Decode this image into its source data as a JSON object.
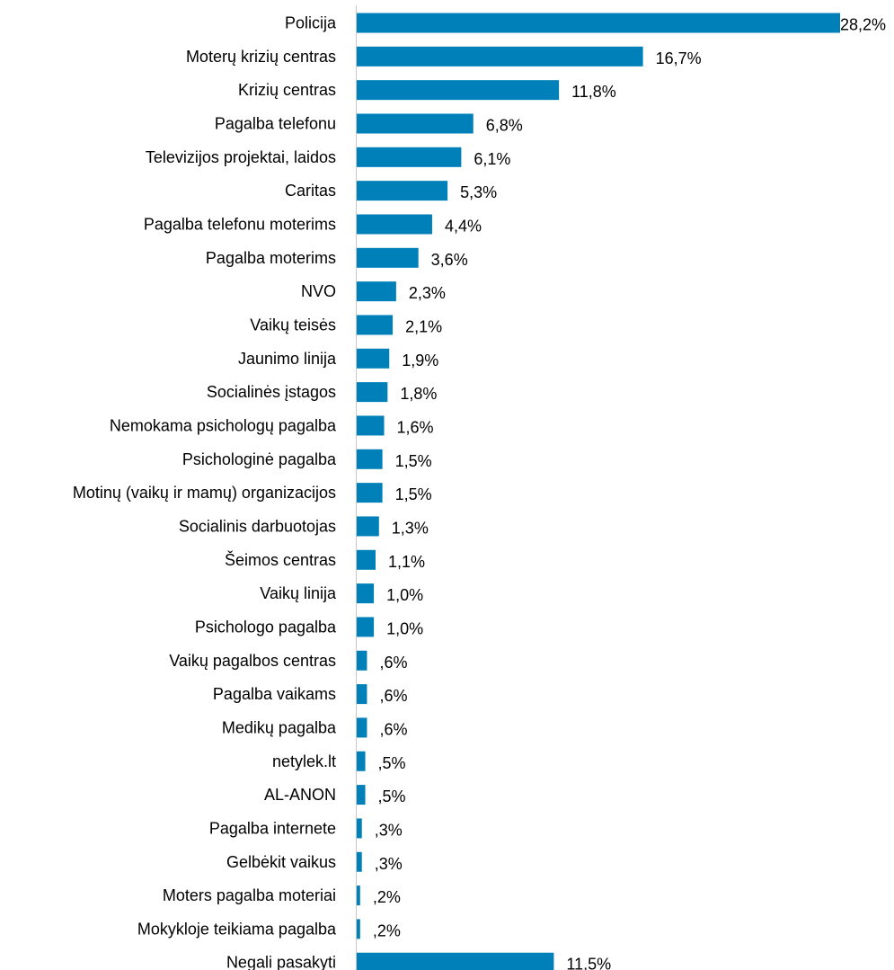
{
  "chart_data": {
    "type": "bar",
    "orientation": "horizontal",
    "bar_color": "#0080B9",
    "grid": false,
    "legend": "none",
    "xlim": [
      0,
      28.2
    ],
    "categories": [
      "Policija",
      "Moterų krizių centras",
      "Krizių centras",
      "Pagalba telefonu",
      "Televizijos projektai, laidos",
      "Caritas",
      "Pagalba telefonu moterims",
      "Pagalba moterims",
      "NVO",
      "Vaikų teisės",
      "Jaunimo linija",
      "Socialinės įstagos",
      "Nemokama psichologų pagalba",
      "Psichologinė pagalba",
      "Motinų (vaikų ir mamų) organizacijos",
      "Socialinis darbuotojas",
      "Šeimos centras",
      "Vaikų linija",
      "Psichologo pagalba",
      "Vaikų pagalbos centras",
      "Pagalba vaikams",
      "Medikų pagalba",
      "netylek.lt",
      "AL-ANON",
      "Pagalba internete",
      "Gelbėkit vaikus",
      "Moters pagalba moteriai",
      "Mokykloje teikiama pagalba",
      "Negali pasakyti"
    ],
    "values": [
      28.2,
      16.7,
      11.8,
      6.8,
      6.1,
      5.3,
      4.4,
      3.6,
      2.3,
      2.1,
      1.9,
      1.8,
      1.6,
      1.5,
      1.5,
      1.3,
      1.1,
      1.0,
      1.0,
      0.6,
      0.6,
      0.6,
      0.5,
      0.5,
      0.3,
      0.3,
      0.2,
      0.2,
      11.5
    ],
    "value_labels": [
      "28,2%",
      "16,7%",
      "11,8%",
      "6,8%",
      "6,1%",
      "5,3%",
      "4,4%",
      "3,6%",
      "2,3%",
      "2,1%",
      "1,9%",
      "1,8%",
      "1,6%",
      "1,5%",
      "1,5%",
      "1,3%",
      "1,1%",
      "1,0%",
      "1,0%",
      ",6%",
      ",6%",
      ",6%",
      ",5%",
      ",5%",
      ",3%",
      ",3%",
      ",2%",
      ",2%",
      "11,5%"
    ]
  }
}
